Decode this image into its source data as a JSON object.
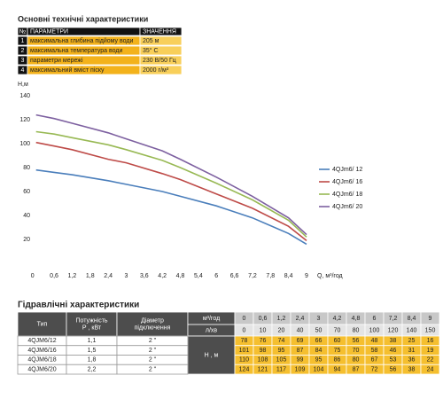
{
  "specs": {
    "title": "Основні технічні характеристики",
    "header": [
      "№",
      "ПАРАМЕТРИ",
      "ЗНАЧЕННЯ"
    ],
    "rows": [
      [
        "1",
        "максимальна глибина підйому води",
        "205 м"
      ],
      [
        "2",
        "максимальна температура води",
        "35° C"
      ],
      [
        "3",
        "параметри мережі",
        "230 В/50 Гц"
      ],
      [
        "4",
        "максимальний вміст піску",
        "2000 г/м³"
      ]
    ]
  },
  "chart_data": {
    "type": "line",
    "y_label": "H,м",
    "x_label": "Q,  м³/год",
    "x": [
      0,
      0.6,
      1.2,
      2.4,
      3,
      4.2,
      4.8,
      6,
      7.2,
      8.4,
      9
    ],
    "series": [
      {
        "name": "4QJm6/ 12",
        "color": "#4a7ebb",
        "values": [
          78,
          76,
          74,
          69,
          66,
          60,
          56,
          48,
          38,
          25,
          16
        ]
      },
      {
        "name": "4QJm6/ 16",
        "color": "#be4b48",
        "values": [
          101,
          98,
          95,
          87,
          84,
          75,
          70,
          58,
          46,
          31,
          19
        ]
      },
      {
        "name": "4QJm6/ 18",
        "color": "#98b954",
        "values": [
          110,
          108,
          105,
          99,
          95,
          86,
          80,
          67,
          53,
          36,
          22
        ]
      },
      {
        "name": "4QJm6/ 20",
        "color": "#7d60a0",
        "values": [
          124,
          121,
          117,
          109,
          104,
          94,
          87,
          72,
          56,
          38,
          24
        ]
      }
    ],
    "xlim": [
      0,
      9
    ],
    "ylim": [
      0,
      140
    ],
    "xticks": [
      0,
      {
        "value": 0.6,
        "label": "0,6"
      },
      {
        "value": 1.2,
        "label": "1,2"
      },
      {
        "value": 1.8,
        "label": "1,8"
      },
      {
        "value": 2.4,
        "label": "2,4"
      },
      3,
      {
        "value": 3.6,
        "label": "3,6"
      },
      {
        "value": 4.2,
        "label": "4,2"
      },
      {
        "value": 4.8,
        "label": "4,8"
      },
      {
        "value": 5.4,
        "label": "5,4"
      },
      6,
      {
        "value": 6.6,
        "label": "6,6"
      },
      {
        "value": 7.2,
        "label": "7,2"
      },
      {
        "value": 7.8,
        "label": "7,8"
      },
      {
        "value": 8.4,
        "label": "8,4"
      },
      9
    ],
    "yticks": [
      20,
      40,
      60,
      80,
      100,
      120,
      140
    ],
    "grid": false
  },
  "hydraulics": {
    "title": "Гідравлічні характеристики",
    "columns": [
      [
        "Тип"
      ],
      [
        "Потужність",
        "Р , кВт"
      ],
      [
        "Діаметр",
        "підключення"
      ]
    ],
    "flow_label": "м³/год",
    "flow_values": [
      "0",
      "0,6",
      "1,2",
      "2,4",
      "3",
      "4,2",
      "4,8",
      "6",
      "7,2",
      "8,4",
      "9"
    ],
    "lpm_label": "л/хв",
    "lpm_values": [
      "0",
      "10",
      "20",
      "40",
      "50",
      "70",
      "80",
      "100",
      "120",
      "140",
      "150"
    ],
    "head_label": "Н , м",
    "rows": [
      {
        "type": "4QJM6/12",
        "power": "1,1",
        "diameter": "2 \"",
        "head": [
          78,
          76,
          74,
          69,
          66,
          60,
          56,
          48,
          38,
          25,
          16
        ]
      },
      {
        "type": "4QJM6/16",
        "power": "1,5",
        "diameter": "2 \"",
        "head": [
          101,
          98,
          95,
          87,
          84,
          75,
          70,
          58,
          46,
          31,
          19
        ]
      },
      {
        "type": "4QJM6/18",
        "power": "1,8",
        "diameter": "2 \"",
        "head": [
          110,
          108,
          105,
          99,
          95,
          86,
          80,
          67,
          53,
          36,
          22
        ]
      },
      {
        "type": "4QJM6/20",
        "power": "2,2",
        "diameter": "2 \"",
        "head": [
          124,
          121,
          117,
          109,
          104,
          94,
          87,
          72,
          56,
          38,
          24
        ]
      }
    ]
  }
}
